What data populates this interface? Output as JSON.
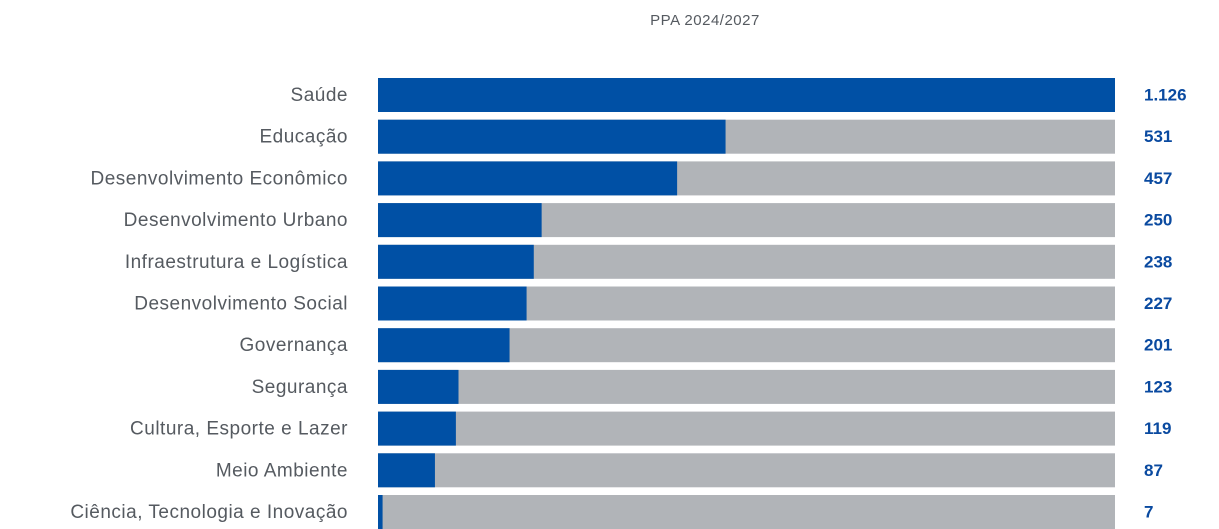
{
  "chart_data": {
    "type": "bar",
    "orientation": "horizontal",
    "title": "PPA 2024/2027",
    "categories": [
      "Saúde",
      "Educação",
      "Desenvolvimento Econômico",
      "Desenvolvimento Urbano",
      "Infraestrutura e Logística",
      "Desenvolvimento Social",
      "Governança",
      "Segurança",
      "Cultura, Esporte e Lazer",
      "Meio Ambiente",
      "Ciência, Tecnologia e Inovação"
    ],
    "values": [
      1126,
      531,
      457,
      250,
      238,
      227,
      201,
      123,
      119,
      87,
      7
    ],
    "value_labels": [
      "1.126",
      "531",
      "457",
      "250",
      "238",
      "227",
      "201",
      "123",
      "119",
      "87",
      "7"
    ],
    "color": "#0050a5",
    "track_color": "#b1b4b8",
    "xlim": [
      0,
      1126
    ]
  }
}
